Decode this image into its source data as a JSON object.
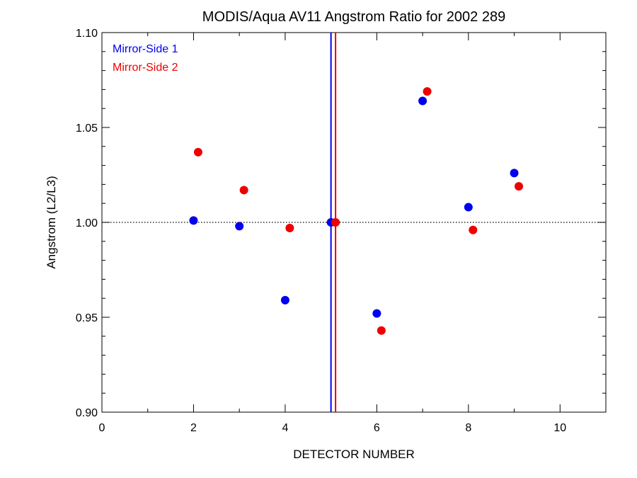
{
  "chart_data": {
    "type": "scatter",
    "title": "MODIS/Aqua AV11 Angstrom Ratio for 2002 289",
    "xlabel": "DETECTOR NUMBER",
    "ylabel": "Angstrom (L2/L3)",
    "xlim": [
      0,
      11
    ],
    "ylim": [
      0.9,
      1.1
    ],
    "x_ticks": [
      0,
      2,
      4,
      6,
      8,
      10
    ],
    "x_tick_labels": [
      "0",
      "2",
      "4",
      "6",
      "8",
      "10"
    ],
    "y_ticks": [
      0.9,
      0.95,
      1.0,
      1.05,
      1.1
    ],
    "y_tick_labels": [
      "0.90",
      "0.95",
      "1.00",
      "1.05",
      "1.10"
    ],
    "reference_hline": 1.0,
    "vertical_lines": [
      {
        "x": 5.0,
        "color": "#0000ee"
      },
      {
        "x": 5.1,
        "color": "#ee0000"
      }
    ],
    "legend": "top-left",
    "series": [
      {
        "name": "Mirror-Side 1",
        "color": "#0000ee",
        "x": [
          2,
          3,
          4,
          5,
          6,
          7,
          8,
          9
        ],
        "y": [
          1.001,
          0.998,
          0.959,
          1.0,
          0.952,
          1.064,
          1.008,
          1.026
        ]
      },
      {
        "name": "Mirror-Side 2",
        "color": "#ee0000",
        "x": [
          2.1,
          3.1,
          4.1,
          5.1,
          6.1,
          7.1,
          8.1,
          9.1
        ],
        "y": [
          1.037,
          1.017,
          0.997,
          1.0,
          0.943,
          1.069,
          0.996,
          1.019
        ]
      }
    ]
  }
}
